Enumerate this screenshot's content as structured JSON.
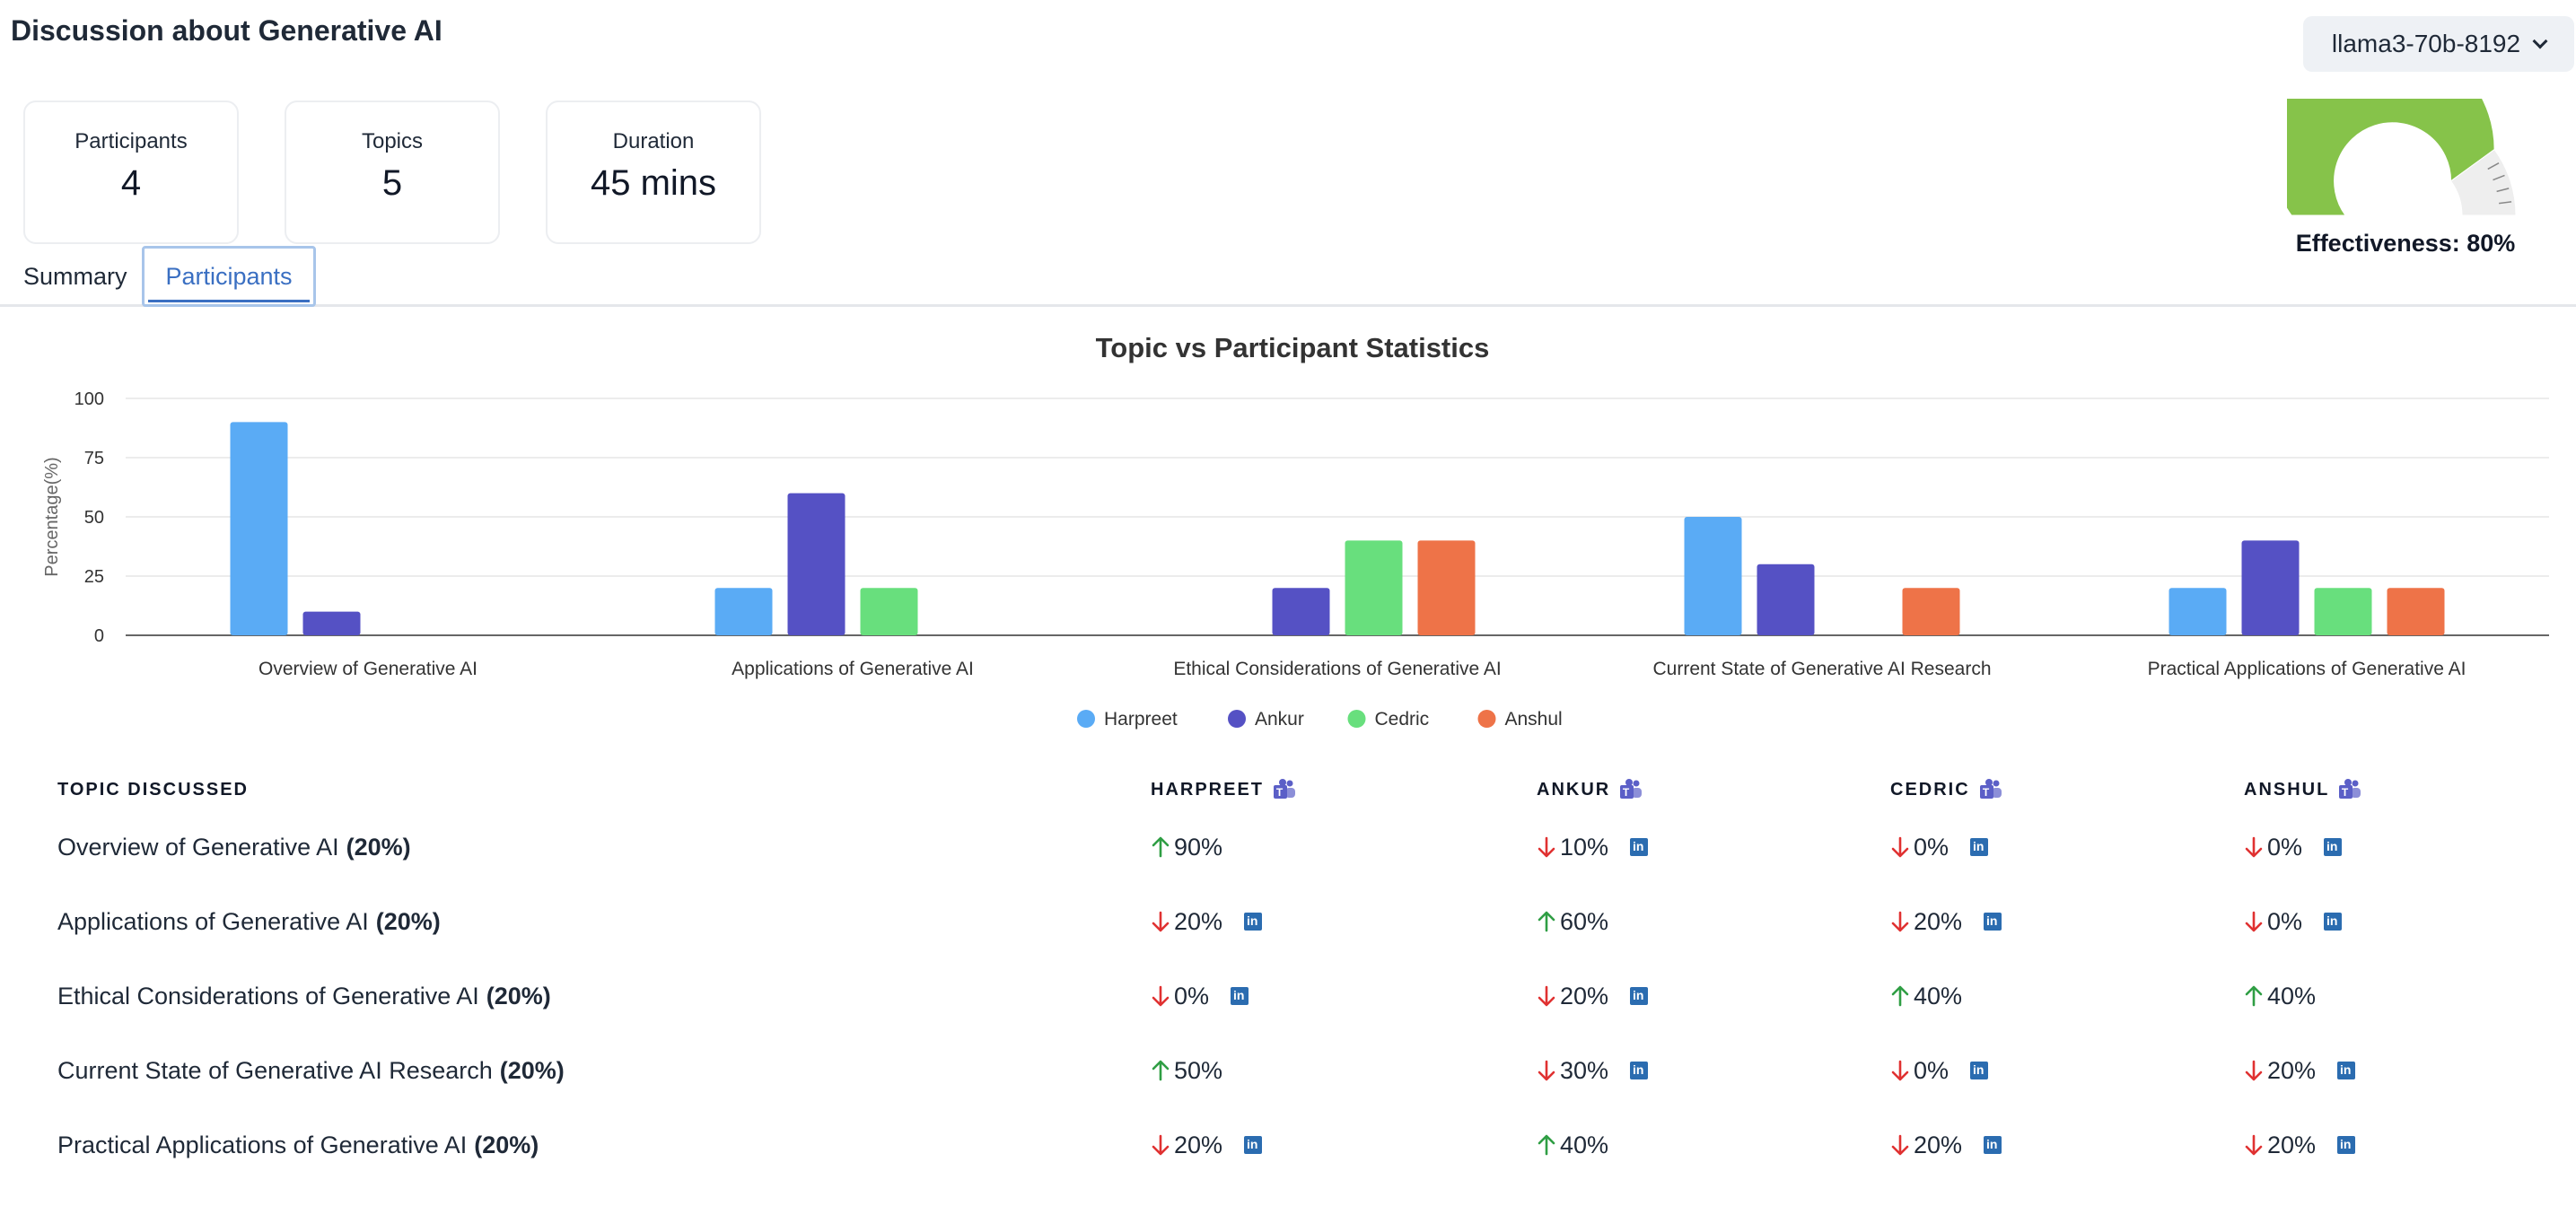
{
  "header": {
    "title": "Discussion about Generative AI",
    "model": "llama3-70b-8192"
  },
  "stats": [
    {
      "label": "Participants",
      "value": "4"
    },
    {
      "label": "Topics",
      "value": "5"
    },
    {
      "label": "Duration",
      "value": "45 mins"
    }
  ],
  "gauge": {
    "label": "Effectiveness: 80%",
    "value_percent": 80,
    "fill_color": "#86c34a",
    "track_color": "#eeeeee"
  },
  "tabs": {
    "summary": "Summary",
    "participants": "Participants",
    "active": "participants"
  },
  "chart_data": {
    "type": "bar",
    "title": "Topic vs Participant Statistics",
    "ylabel": "Percentage(%)",
    "xlabel": "",
    "ylim": [
      0,
      100
    ],
    "yticks": [
      0,
      25,
      50,
      75,
      100
    ],
    "grid": true,
    "legend": "bottom-center",
    "categories": [
      "Overview of Generative AI",
      "Applications of Generative AI",
      "Ethical Considerations of Generative AI",
      "Current State of Generative AI Research",
      "Practical Applications of Generative AI"
    ],
    "series": [
      {
        "name": "Harpreet",
        "color": "#5aabf5",
        "values": [
          90,
          20,
          0,
          50,
          20
        ]
      },
      {
        "name": "Ankur",
        "color": "#5551c4",
        "values": [
          10,
          60,
          20,
          30,
          40
        ]
      },
      {
        "name": "Cedric",
        "color": "#68df7d",
        "values": [
          0,
          20,
          40,
          0,
          20
        ]
      },
      {
        "name": "Anshul",
        "color": "#ee7348",
        "values": [
          0,
          0,
          40,
          20,
          20
        ]
      }
    ]
  },
  "table": {
    "topic_header": "TOPIC DISCUSSED",
    "participants": [
      "HARPREET",
      "ANKUR",
      "CEDRIC",
      "ANSHUL"
    ],
    "rows": [
      {
        "topic": "Overview of Generative AI",
        "weight": "(20%)",
        "cells": [
          {
            "dir": "up",
            "value": "90%",
            "linkedin": false
          },
          {
            "dir": "down",
            "value": "10%",
            "linkedin": true
          },
          {
            "dir": "down",
            "value": "0%",
            "linkedin": true
          },
          {
            "dir": "down",
            "value": "0%",
            "linkedin": true
          }
        ]
      },
      {
        "topic": "Applications of Generative AI",
        "weight": "(20%)",
        "cells": [
          {
            "dir": "down",
            "value": "20%",
            "linkedin": true
          },
          {
            "dir": "up",
            "value": "60%",
            "linkedin": false
          },
          {
            "dir": "down",
            "value": "20%",
            "linkedin": true
          },
          {
            "dir": "down",
            "value": "0%",
            "linkedin": true
          }
        ]
      },
      {
        "topic": "Ethical Considerations of Generative AI",
        "weight": "(20%)",
        "cells": [
          {
            "dir": "down",
            "value": "0%",
            "linkedin": true
          },
          {
            "dir": "down",
            "value": "20%",
            "linkedin": true
          },
          {
            "dir": "up",
            "value": "40%",
            "linkedin": false
          },
          {
            "dir": "up",
            "value": "40%",
            "linkedin": false
          }
        ]
      },
      {
        "topic": "Current State of Generative AI Research",
        "weight": "(20%)",
        "cells": [
          {
            "dir": "up",
            "value": "50%",
            "linkedin": false
          },
          {
            "dir": "down",
            "value": "30%",
            "linkedin": true
          },
          {
            "dir": "down",
            "value": "0%",
            "linkedin": true
          },
          {
            "dir": "down",
            "value": "20%",
            "linkedin": true
          }
        ]
      },
      {
        "topic": "Practical Applications of Generative AI",
        "weight": "(20%)",
        "cells": [
          {
            "dir": "down",
            "value": "20%",
            "linkedin": true
          },
          {
            "dir": "up",
            "value": "40%",
            "linkedin": false
          },
          {
            "dir": "down",
            "value": "20%",
            "linkedin": true
          },
          {
            "dir": "down",
            "value": "20%",
            "linkedin": true
          }
        ]
      }
    ],
    "colors": {
      "up": "#2f9e44",
      "down": "#e03131",
      "teams": "#5b5fc7"
    }
  }
}
